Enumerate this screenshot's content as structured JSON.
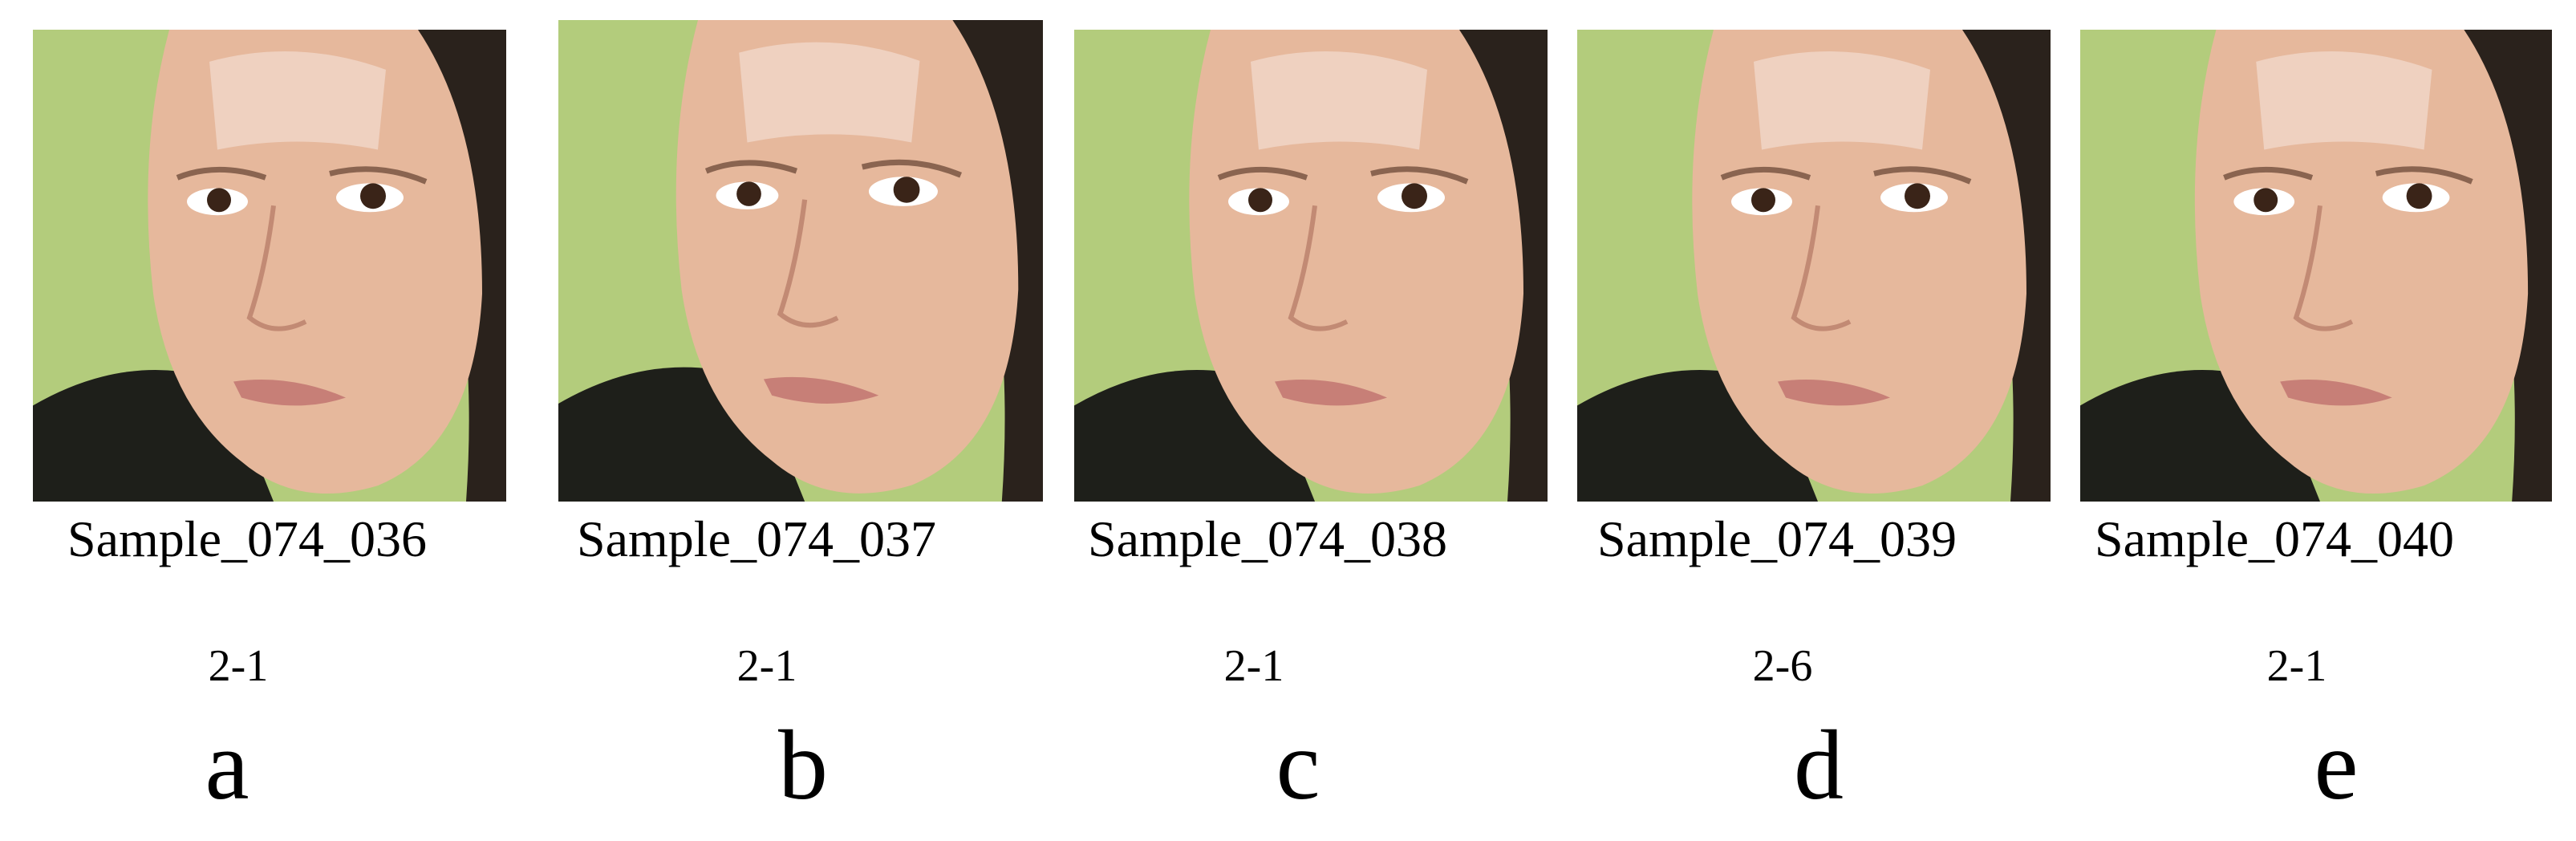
{
  "panels": [
    {
      "sample": "Sample_074_036",
      "code": "2-1",
      "letter": "a"
    },
    {
      "sample": "Sample_074_037",
      "code": "2-1",
      "letter": "b"
    },
    {
      "sample": "Sample_074_038",
      "code": "2-1",
      "letter": "c"
    },
    {
      "sample": "Sample_074_039",
      "code": "2-6",
      "letter": "d"
    },
    {
      "sample": "Sample_074_040",
      "code": "2-1",
      "letter": "e"
    }
  ]
}
